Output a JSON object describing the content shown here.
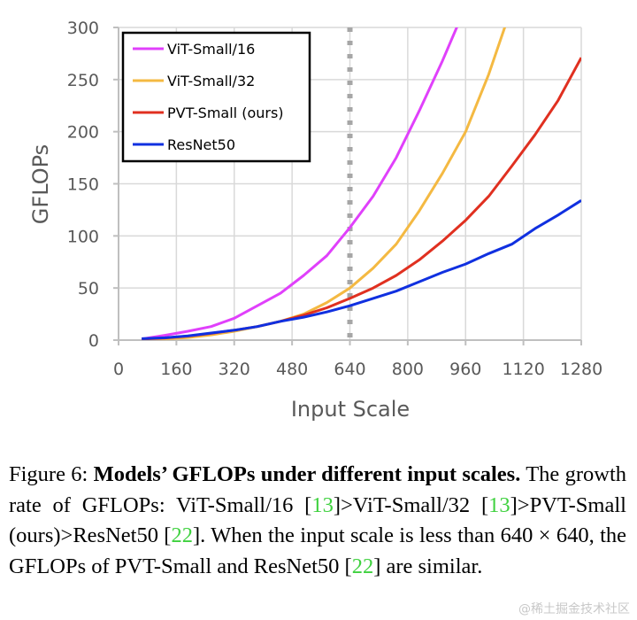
{
  "chart_data": {
    "type": "line",
    "title": "",
    "xlabel": "Input Scale",
    "ylabel": "GFLOPs",
    "xlim": [
      0,
      1280
    ],
    "ylim": [
      0,
      300
    ],
    "xticks": [
      0,
      160,
      320,
      480,
      640,
      800,
      960,
      1120,
      1280
    ],
    "yticks": [
      0,
      50,
      100,
      150,
      200,
      250,
      300
    ],
    "grid": true,
    "legend_position": "top-left",
    "reference_line": {
      "x": 640,
      "style": "dotted",
      "color": "#a6a6a6"
    },
    "x": [
      64,
      128,
      192,
      256,
      320,
      384,
      448,
      512,
      576,
      640,
      704,
      768,
      832,
      896,
      960,
      1024,
      1088,
      1152,
      1216,
      1280
    ],
    "series": [
      {
        "name": "ViT-Small/16",
        "color": "#e040fb",
        "values": [
          1.1,
          4.6,
          8.5,
          13,
          21,
          33,
          45,
          62,
          81,
          108,
          138,
          175,
          220,
          268,
          320,
          null,
          null,
          null,
          null,
          null
        ]
      },
      {
        "name": "ViT-Small/32",
        "color": "#f4b942",
        "values": [
          0.3,
          1.1,
          2.5,
          5,
          8.5,
          13,
          18,
          25,
          36,
          50,
          69,
          92,
          124,
          160,
          200,
          255,
          320,
          null,
          null,
          null
        ]
      },
      {
        "name": "PVT-Small (ours)",
        "color": "#e03020",
        "values": [
          1.0,
          2.0,
          3.8,
          6.5,
          9.5,
          13,
          18,
          24,
          31,
          40,
          50,
          62,
          77,
          95,
          115,
          138,
          167,
          197,
          230,
          271
        ]
      },
      {
        "name": "ResNet50",
        "color": "#1030e0",
        "values": [
          1.4,
          2.2,
          4.0,
          6.8,
          9.5,
          13,
          18,
          22,
          27,
          33,
          40,
          47,
          56,
          65,
          73,
          83,
          92,
          107,
          120,
          134
        ]
      }
    ]
  },
  "caption": {
    "prefix": "Figure 6: ",
    "bold": "Models’ GFLOPs under different input scales.",
    "text1": " The growth rate of GFLOPs: ViT-Small/16 [",
    "cite1": "13",
    "text2": "]>ViT-Small/32 [",
    "cite2": "13",
    "text3": "]>PVT-Small (ours)>ResNet50 [",
    "cite3": "22",
    "text4": "]. When the input scale is less than 640 × 640, the GFLOPs of PVT-Small and ResNet50 [",
    "cite4": "22",
    "text5": "] are similar."
  },
  "watermark": "@稀土掘金技术社区"
}
